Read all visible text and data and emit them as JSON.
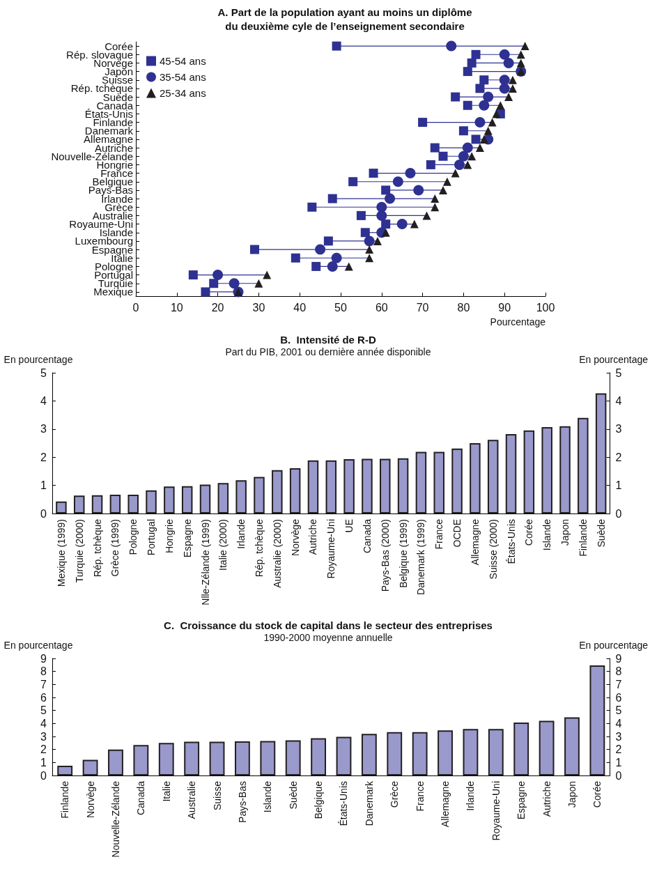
{
  "chart_data": [
    {
      "type": "scatter",
      "orientation": "horizontal",
      "title": "A. Part de la population ayant au moins un diplôme\ndu deuxième cyle de l’enseignement secondaire",
      "xlabel": "Pourcentage",
      "legend": "top left",
      "xlim": [
        0,
        100
      ],
      "xticks": [
        0,
        10,
        20,
        30,
        40,
        50,
        60,
        70,
        80,
        90,
        100
      ],
      "categories": [
        "Corée",
        "Rép. slovaque",
        "Norvège",
        "Japon",
        "Suisse",
        "Rép. tchèque",
        "Suède",
        "Canada",
        "États-Unis",
        "Finlande",
        "Danemark",
        "Allemagne",
        "Autriche",
        "Nouvelle-Zélande",
        "Hongrie",
        "France",
        "Belgique",
        "Pays-Bas",
        "Irlande",
        "Grèce",
        "Australie",
        "Royaume-Uni",
        "Islande",
        "Luxembourg",
        "Espagne",
        "Italie",
        "Pologne",
        "Portugal",
        "Turquie",
        "Mexique"
      ],
      "series": [
        {
          "name": "45-54 ans",
          "color": "#2e3192",
          "marker": "square",
          "values": [
            49,
            83,
            82,
            81,
            85,
            84,
            78,
            81,
            89,
            70,
            80,
            83,
            73,
            75,
            72,
            58,
            53,
            61,
            48,
            43,
            55,
            61,
            56,
            47,
            29,
            39,
            44,
            14,
            19,
            17
          ]
        },
        {
          "name": "35-54 ans",
          "color": "#2e3192",
          "marker": "circle",
          "values": [
            77,
            90,
            91,
            94,
            90,
            90,
            86,
            85,
            null,
            84,
            null,
            86,
            81,
            80,
            79,
            67,
            64,
            69,
            62,
            60,
            60,
            65,
            60,
            57,
            45,
            49,
            48,
            20,
            24,
            25
          ]
        },
        {
          "name": "25-34 ans",
          "color": "#231f20",
          "marker": "triangle",
          "values": [
            95,
            94,
            94,
            94,
            92,
            92,
            91,
            89,
            88,
            87,
            86,
            85,
            84,
            82,
            81,
            78,
            76,
            75,
            73,
            73,
            71,
            68,
            61,
            59,
            57,
            57,
            52,
            32,
            30,
            25
          ]
        }
      ]
    },
    {
      "type": "bar",
      "title": "B.  Intensité de R-D",
      "subtitle": "Part du PIB, 2001 ou dernière année disponible",
      "ylabel": "En pourcentage",
      "y2label": "En pourcentage",
      "ylim": [
        0,
        5
      ],
      "yticks": [
        0,
        1,
        2,
        3,
        4,
        5
      ],
      "y2lim": [
        0,
        5
      ],
      "y2ticks": [
        0,
        1,
        2,
        3,
        4,
        5
      ],
      "categories": [
        "Mexique (1999)",
        "Turquie (2000)",
        "Rép. tchèque",
        "Grèce (1999)",
        "Pologne",
        "Portugal",
        "Hongrie",
        "Espagne",
        "Nlle-Zélande (1999)",
        "Italie (2000)",
        "Irlande",
        "Rép. tchèque",
        "Australie (2000)",
        "Norvège",
        "Autriche",
        "Royaume-Uni",
        "UE",
        "Canada",
        "Pays-Bas (2000)",
        "Belgique (1999)",
        "Danemark (1999)",
        "France",
        "OCDE",
        "Allemagne",
        "Suisse (2000)",
        "États-Unis",
        "Corée",
        "Islande",
        "Japon",
        "Finlande",
        "Suède"
      ],
      "color": "#9999cc",
      "values": [
        0.43,
        0.64,
        0.65,
        0.67,
        0.67,
        0.82,
        0.96,
        0.97,
        1.03,
        1.08,
        1.18,
        1.3,
        1.54,
        1.61,
        1.89,
        1.89,
        1.93,
        1.94,
        1.94,
        1.96,
        2.19,
        2.19,
        2.31,
        2.5,
        2.62,
        2.82,
        2.95,
        3.07,
        3.1,
        3.4,
        4.27
      ]
    },
    {
      "type": "bar",
      "title": "C.  Croissance du stock de capital dans le secteur des entreprises",
      "subtitle": "1990-2000 moyenne annuelle",
      "ylabel": "En pourcentage",
      "y2label": "En pourcentage",
      "ylim": [
        0,
        9
      ],
      "yticks": [
        0,
        1,
        2,
        3,
        4,
        5,
        6,
        7,
        8,
        9
      ],
      "y2lim": [
        0,
        9
      ],
      "y2ticks": [
        0,
        1,
        2,
        3,
        4,
        5,
        6,
        7,
        8,
        9
      ],
      "categories": [
        "Finlande",
        "Norvège",
        "Nouvelle-Zélande",
        "Canada",
        "Italie",
        "Australie",
        "Suisse",
        "Pays-Bas",
        "Islande",
        "Suède",
        "Belgique",
        "États-Unis",
        "Danemark",
        "Grèce",
        "France",
        "Allemagne",
        "Irlande",
        "Royaume-Uni",
        "Espagne",
        "Autriche",
        "Japon",
        "Corée"
      ],
      "color": "#9999cc",
      "values": [
        0.75,
        1.2,
        2.0,
        2.35,
        2.5,
        2.6,
        2.6,
        2.62,
        2.65,
        2.7,
        2.87,
        2.97,
        3.2,
        3.33,
        3.33,
        3.47,
        3.57,
        3.57,
        4.07,
        4.2,
        4.47,
        8.47
      ]
    }
  ]
}
